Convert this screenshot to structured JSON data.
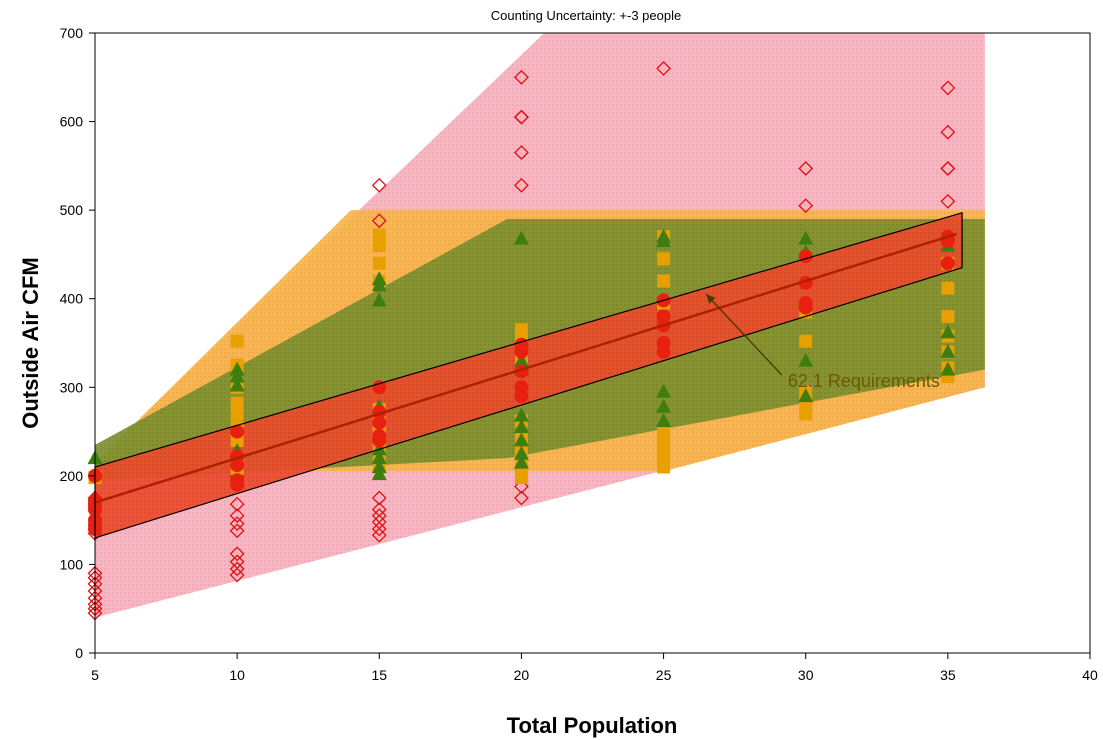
{
  "chart_data": {
    "type": "scatter",
    "title": "Counting Uncertainty: +-3 people",
    "xlabel": "Total Population",
    "ylabel": "Outside Air CFM",
    "xlim": [
      5,
      40
    ],
    "ylim": [
      0,
      700
    ],
    "xticks": [
      5,
      10,
      15,
      20,
      25,
      30,
      35,
      40
    ],
    "yticks": [
      0,
      100,
      200,
      300,
      400,
      500,
      600,
      700
    ],
    "x_tick_labels": [
      "5",
      "10",
      "15",
      "20",
      "25",
      "30",
      "35",
      "40"
    ],
    "y_tick_labels": [
      "0",
      "100",
      "200",
      "300",
      "400",
      "500",
      "600",
      "700"
    ],
    "grid": false,
    "annotation": {
      "text": "62.1 Requirements",
      "x": 29.3,
      "y": 307,
      "arrow_to_x": 26.5,
      "arrow_to_y": 405
    },
    "colors": {
      "pink_band": "#f4a0b0",
      "orange_band": "#f6b03c",
      "green_band": "#6f8f2a",
      "red_band": "#e8462a",
      "diamond": "#e01010",
      "square": "#e8a000",
      "triangle": "#3e7e10",
      "circle": "#e82010",
      "requirement_line": "#b02000"
    },
    "bands": [
      {
        "name": "pink",
        "polygon": [
          [
            5,
            40
          ],
          [
            36.3,
            300
          ],
          [
            36.3,
            700
          ],
          [
            20.8,
            700
          ],
          [
            5,
            215
          ]
        ]
      },
      {
        "name": "orange",
        "polygon": [
          [
            5,
            195
          ],
          [
            5,
            215
          ],
          [
            14,
            500
          ],
          [
            36.3,
            500
          ],
          [
            36.3,
            300
          ],
          [
            25,
            205
          ],
          [
            10.5,
            205
          ]
        ]
      },
      {
        "name": "green",
        "polygon": [
          [
            5,
            190
          ],
          [
            5,
            235
          ],
          [
            19.5,
            490
          ],
          [
            36.3,
            490
          ],
          [
            36.3,
            320
          ],
          [
            19.5,
            220
          ],
          [
            5,
            195
          ]
        ]
      },
      {
        "name": "red",
        "polygon": [
          [
            5,
            130
          ],
          [
            35.5,
            435
          ],
          [
            35.5,
            497
          ],
          [
            5,
            210
          ]
        ]
      }
    ],
    "requirement_line": [
      [
        5,
        170
      ],
      [
        35.3,
        473
      ]
    ],
    "series": [
      {
        "marker": "diamond",
        "points": [
          [
            5,
            45
          ],
          [
            5,
            50
          ],
          [
            5,
            55
          ],
          [
            5,
            62
          ],
          [
            5,
            70
          ],
          [
            5,
            78
          ],
          [
            5,
            85
          ],
          [
            5,
            90
          ],
          [
            5,
            135
          ],
          [
            5,
            140
          ],
          [
            5,
            165
          ],
          [
            5,
            175
          ],
          [
            5,
            200
          ],
          [
            10,
            88
          ],
          [
            10,
            95
          ],
          [
            10,
            103
          ],
          [
            10,
            112
          ],
          [
            10,
            138
          ],
          [
            10,
            146
          ],
          [
            10,
            155
          ],
          [
            10,
            168
          ],
          [
            10,
            190
          ],
          [
            10,
            200
          ],
          [
            15,
            133
          ],
          [
            15,
            140
          ],
          [
            15,
            148
          ],
          [
            15,
            155
          ],
          [
            15,
            162
          ],
          [
            15,
            175
          ],
          [
            15,
            488
          ],
          [
            15,
            528
          ],
          [
            20,
            175
          ],
          [
            20,
            188
          ],
          [
            20,
            528
          ],
          [
            20,
            565
          ],
          [
            20,
            605
          ],
          [
            20,
            605
          ],
          [
            20,
            650
          ],
          [
            25,
            660
          ],
          [
            30,
            505
          ],
          [
            30,
            547
          ],
          [
            35,
            510
          ],
          [
            35,
            547
          ],
          [
            35,
            547
          ],
          [
            35,
            588
          ],
          [
            35,
            638
          ]
        ]
      },
      {
        "marker": "square",
        "points": [
          [
            5,
            198
          ],
          [
            10,
            208
          ],
          [
            10,
            218
          ],
          [
            10,
            240
          ],
          [
            10,
            255
          ],
          [
            10,
            270
          ],
          [
            10,
            282
          ],
          [
            10,
            300
          ],
          [
            10,
            325
          ],
          [
            10,
            352
          ],
          [
            15,
            210
          ],
          [
            15,
            225
          ],
          [
            15,
            240
          ],
          [
            15,
            250
          ],
          [
            15,
            255
          ],
          [
            15,
            265
          ],
          [
            15,
            275
          ],
          [
            15,
            420
          ],
          [
            15,
            440
          ],
          [
            15,
            460
          ],
          [
            15,
            472
          ],
          [
            20,
            198
          ],
          [
            20,
            210
          ],
          [
            20,
            222
          ],
          [
            20,
            232
          ],
          [
            20,
            242
          ],
          [
            20,
            262
          ],
          [
            20,
            332
          ],
          [
            20,
            352
          ],
          [
            20,
            365
          ],
          [
            25,
            210
          ],
          [
            25,
            220
          ],
          [
            25,
            230
          ],
          [
            25,
            240
          ],
          [
            25,
            250
          ],
          [
            25,
            395
          ],
          [
            25,
            420
          ],
          [
            25,
            445
          ],
          [
            25,
            470
          ],
          [
            30,
            270
          ],
          [
            30,
            282
          ],
          [
            30,
            295
          ],
          [
            30,
            352
          ],
          [
            30,
            385
          ],
          [
            35,
            312
          ],
          [
            35,
            322
          ],
          [
            35,
            340
          ],
          [
            35,
            358
          ],
          [
            35,
            380
          ],
          [
            35,
            412
          ],
          [
            35,
            440
          ]
        ]
      },
      {
        "marker": "triangle",
        "points": [
          [
            5,
            220
          ],
          [
            10,
            228
          ],
          [
            10,
            302
          ],
          [
            10,
            312
          ],
          [
            10,
            320
          ],
          [
            15,
            202
          ],
          [
            15,
            210
          ],
          [
            15,
            220
          ],
          [
            15,
            230
          ],
          [
            15,
            246
          ],
          [
            15,
            278
          ],
          [
            15,
            398
          ],
          [
            15,
            415
          ],
          [
            15,
            422
          ],
          [
            20,
            215
          ],
          [
            20,
            225
          ],
          [
            20,
            240
          ],
          [
            20,
            255
          ],
          [
            20,
            268
          ],
          [
            20,
            320
          ],
          [
            20,
            330
          ],
          [
            20,
            468
          ],
          [
            25,
            262
          ],
          [
            25,
            278
          ],
          [
            25,
            295
          ],
          [
            25,
            465
          ],
          [
            25,
            470
          ],
          [
            30,
            290
          ],
          [
            30,
            330
          ],
          [
            30,
            452
          ],
          [
            30,
            468
          ],
          [
            35,
            320
          ],
          [
            35,
            340
          ],
          [
            35,
            362
          ],
          [
            35,
            460
          ]
        ]
      },
      {
        "marker": "circle",
        "points": [
          [
            5,
            140
          ],
          [
            5,
            145
          ],
          [
            5,
            150
          ],
          [
            5,
            162
          ],
          [
            5,
            168
          ],
          [
            5,
            172
          ],
          [
            5,
            200
          ],
          [
            10,
            190
          ],
          [
            10,
            195
          ],
          [
            10,
            212
          ],
          [
            10,
            222
          ],
          [
            10,
            250
          ],
          [
            15,
            240
          ],
          [
            15,
            245
          ],
          [
            15,
            260
          ],
          [
            15,
            272
          ],
          [
            15,
            300
          ],
          [
            20,
            290
          ],
          [
            20,
            300
          ],
          [
            20,
            318
          ],
          [
            20,
            340
          ],
          [
            20,
            348
          ],
          [
            25,
            340
          ],
          [
            25,
            350
          ],
          [
            25,
            370
          ],
          [
            25,
            380
          ],
          [
            25,
            398
          ],
          [
            30,
            390
          ],
          [
            30,
            395
          ],
          [
            30,
            418
          ],
          [
            30,
            448
          ],
          [
            35,
            440
          ],
          [
            35,
            465
          ],
          [
            35,
            470
          ]
        ]
      }
    ]
  }
}
